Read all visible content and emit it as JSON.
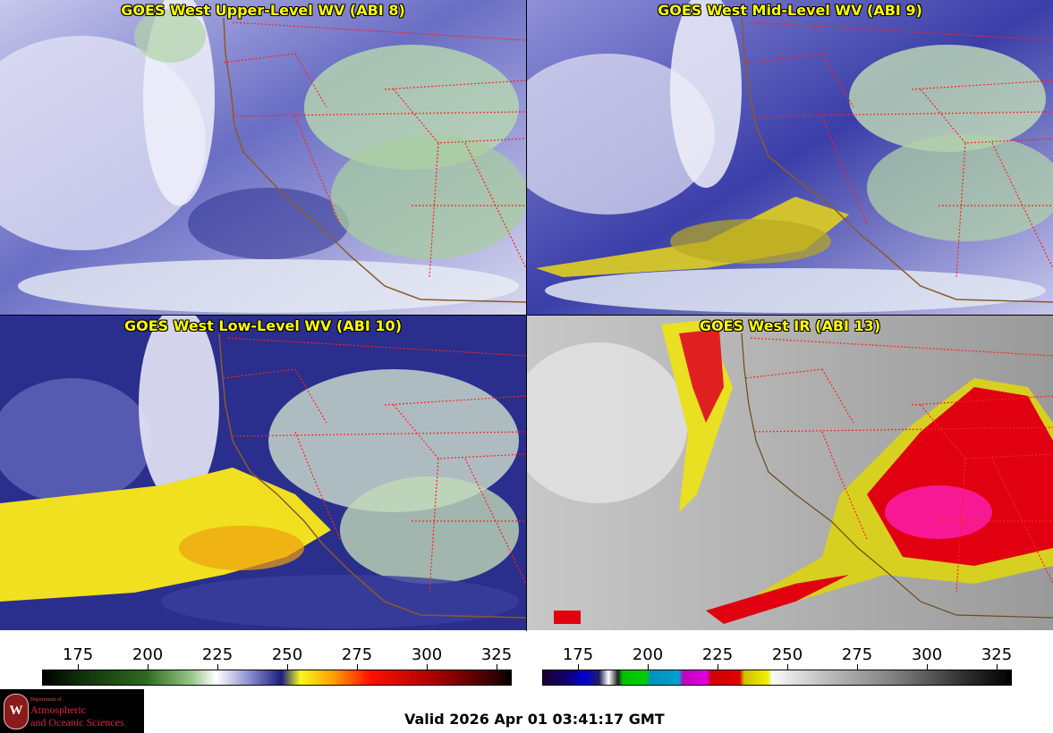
{
  "panels": [
    {
      "title": "GOES West Upper-Level WV (ABI 8)",
      "scheme": "wv-upper"
    },
    {
      "title": "GOES West Mid-Level WV (ABI 9)",
      "scheme": "wv-mid"
    },
    {
      "title": "GOES West Low-Level WV (ABI 10)",
      "scheme": "wv-low"
    },
    {
      "title": "GOES West IR (ABI 13)",
      "scheme": "ir"
    }
  ],
  "colorbars": {
    "wv": {
      "ticks": [
        "175",
        "200",
        "225",
        "250",
        "275",
        "300",
        "325"
      ]
    },
    "ir": {
      "ticks": [
        "175",
        "200",
        "225",
        "250",
        "275",
        "300",
        "325"
      ]
    }
  },
  "logo": {
    "dept": "Department of",
    "line1": "Atmospheric",
    "line2": "and Oceanic Sciences",
    "emblem_letter": "W"
  },
  "valid_time": "Valid 2026 Apr 01 03:41:17 GMT",
  "colors": {
    "title_text": "#ffff00",
    "state_borders": "#ff2020",
    "coastline": "#8b5a2b",
    "background": "#ffffff"
  }
}
